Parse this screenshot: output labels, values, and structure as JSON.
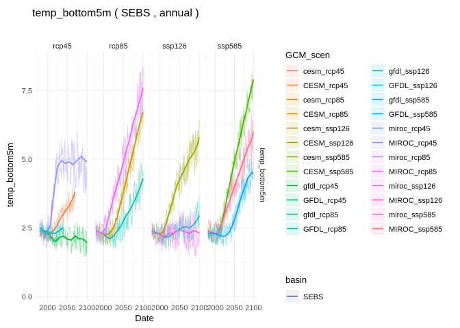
{
  "chart_data": {
    "type": "line",
    "title": "temp_bottom5m ( SEBS , annual )",
    "xlabel": "Date",
    "ylabel": "temp_bottom5m",
    "strip_right": "temp_bottom5m",
    "facets": [
      "rcp45",
      "rcp85",
      "ssp126",
      "ssp585"
    ],
    "xlim": [
      1970,
      2105
    ],
    "ylim": [
      -0.2,
      8.9
    ],
    "x_ticks": [
      2000,
      2050,
      2100
    ],
    "x_tick_labels": [
      "2000",
      "2050",
      "2100"
    ],
    "y_ticks": [
      0.0,
      2.5,
      5.0,
      7.5
    ],
    "y_tick_labels": [
      "0.0",
      "2.5",
      "5.0",
      "7.5"
    ],
    "grid": true,
    "legend_position": "right",
    "legend_gcm": {
      "title": "GCM_scen",
      "entries": [
        {
          "name": "cesm_rcp45",
          "color": "#F8766D"
        },
        {
          "name": "CESM_rcp45",
          "color": "#EE8043"
        },
        {
          "name": "cesm_rcp85",
          "color": "#E18A00"
        },
        {
          "name": "CESM_rcp85",
          "color": "#CD9600"
        },
        {
          "name": "cesm_ssp126",
          "color": "#B69E00"
        },
        {
          "name": "CESM_ssp126",
          "color": "#9CA700"
        },
        {
          "name": "cesm_ssp585",
          "color": "#7CAE00"
        },
        {
          "name": "CESM_ssp585",
          "color": "#49B500"
        },
        {
          "name": "gfdl_rcp45",
          "color": "#00BA38"
        },
        {
          "name": "GFDL_rcp45",
          "color": "#00BE67"
        },
        {
          "name": "gfdl_rcp85",
          "color": "#00C08B"
        },
        {
          "name": "GFDL_rcp85",
          "color": "#00C1AA"
        },
        {
          "name": "gfdl_ssp126",
          "color": "#00BFC4"
        },
        {
          "name": "GFDL_ssp126",
          "color": "#00BBDC"
        },
        {
          "name": "gfdl_ssp585",
          "color": "#00B4F0"
        },
        {
          "name": "GFDL_ssp585",
          "color": "#00A9FF"
        },
        {
          "name": "miroc_rcp45",
          "color": "#619CFF"
        },
        {
          "name": "MIROC_rcp45",
          "color": "#9590FF"
        },
        {
          "name": "miroc_rcp85",
          "color": "#C77CFF"
        },
        {
          "name": "MIROC_rcp85",
          "color": "#E76BF3"
        },
        {
          "name": "miroc_ssp126",
          "color": "#F564E3"
        },
        {
          "name": "MIROC_ssp126",
          "color": "#FF61C3"
        },
        {
          "name": "miroc_ssp585",
          "color": "#FF62BC"
        },
        {
          "name": "MIROC_ssp585",
          "color": "#FF6C91"
        }
      ]
    },
    "legend_basin": {
      "title": "basin",
      "entries": [
        {
          "name": "SEBS",
          "color": "#3366CC"
        }
      ]
    },
    "panels": [
      {
        "facet": "rcp45",
        "series": [
          {
            "color": "#00BA38",
            "x": [
              1980,
              1995,
              2006,
              2010,
              2020,
              2030,
              2040,
              2050,
              2060,
              2070,
              2080,
              2090,
              2100
            ],
            "y": [
              2.4,
              2.3,
              2.25,
              2.15,
              2.0,
              2.15,
              2.2,
              2.1,
              2.05,
              2.2,
              2.1,
              2.1,
              1.95
            ],
            "var": 0.45
          },
          {
            "color": "#EE8043",
            "x": [
              1980,
              1995,
              2006,
              2015,
              2025,
              2035,
              2045,
              2055,
              2065,
              2070
            ],
            "y": [
              2.4,
              2.3,
              2.3,
              2.4,
              2.6,
              2.9,
              3.1,
              3.3,
              3.6,
              3.8
            ],
            "var": 0.4
          },
          {
            "color": "#9590FF",
            "x": [
              1980,
              1995,
              2006,
              2012,
              2018,
              2025,
              2035,
              2045,
              2055,
              2065,
              2075,
              2085,
              2095,
              2100
            ],
            "y": [
              2.4,
              2.35,
              2.5,
              3.3,
              4.0,
              4.7,
              4.95,
              4.85,
              4.9,
              4.8,
              4.95,
              5.1,
              4.95,
              4.9
            ],
            "var": 0.9
          },
          {
            "color": "#00BFC4",
            "x": [
              1980,
              1990,
              2000,
              2010,
              2020,
              2030,
              2040
            ],
            "y": [
              2.5,
              2.4,
              2.35,
              2.3,
              2.3,
              2.4,
              2.5
            ],
            "var": 0.35
          }
        ]
      },
      {
        "facet": "rcp85",
        "series": [
          {
            "color": "#00C1AA",
            "x": [
              1980,
              1995,
              2006,
              2015,
              2025,
              2035,
              2045,
              2055,
              2065,
              2075,
              2085,
              2095,
              2100
            ],
            "y": [
              2.4,
              2.3,
              2.2,
              2.1,
              2.2,
              2.4,
              2.6,
              2.9,
              3.1,
              3.4,
              3.7,
              4.1,
              4.3
            ],
            "var": 0.6
          },
          {
            "color": "#CD9600",
            "x": [
              1980,
              1995,
              2006,
              2015,
              2025,
              2035,
              2045,
              2055,
              2065,
              2075,
              2085,
              2095,
              2100
            ],
            "y": [
              2.4,
              2.3,
              2.25,
              2.3,
              2.5,
              2.9,
              3.5,
              4.1,
              4.7,
              5.3,
              5.9,
              6.5,
              6.7
            ],
            "var": 0.55
          },
          {
            "color": "#E76BF3",
            "x": [
              1980,
              1995,
              2006,
              2015,
              2025,
              2035,
              2045,
              2055,
              2065,
              2075,
              2085,
              2095,
              2100
            ],
            "y": [
              2.4,
              2.3,
              2.5,
              3.0,
              3.6,
              4.1,
              4.6,
              5.2,
              5.7,
              6.3,
              6.8,
              7.3,
              7.6
            ],
            "var": 0.8
          }
        ]
      },
      {
        "facet": "ssp126",
        "series": [
          {
            "color": "#9CA700",
            "x": [
              1980,
              1995,
              2006,
              2015,
              2025,
              2035,
              2045,
              2055,
              2065,
              2075,
              2085,
              2095,
              2100
            ],
            "y": [
              2.4,
              2.3,
              2.3,
              2.6,
              3.1,
              3.6,
              4.1,
              4.4,
              4.7,
              5.0,
              5.2,
              5.5,
              5.8
            ],
            "var": 0.6
          },
          {
            "color": "#00BFC4",
            "x": [
              1980,
              1995,
              2006,
              2015,
              2025,
              2035,
              2045,
              2055,
              2065,
              2075,
              2085,
              2095,
              2100
            ],
            "y": [
              2.3,
              2.3,
              2.2,
              2.15,
              2.2,
              2.3,
              2.4,
              2.5,
              2.55,
              2.5,
              2.6,
              2.8,
              2.95
            ],
            "var": 0.5
          },
          {
            "color": "#F564E3",
            "x": [
              1980,
              1995,
              2006,
              2015,
              2025,
              2035,
              2045,
              2055,
              2065,
              2075,
              2085,
              2095,
              2100
            ],
            "y": [
              2.3,
              2.3,
              2.2,
              2.2,
              2.3,
              2.3,
              2.4,
              2.4,
              2.35,
              2.3,
              2.4,
              2.35,
              2.3
            ],
            "var": 0.7
          }
        ]
      },
      {
        "facet": "ssp585",
        "series": [
          {
            "color": "#49B500",
            "x": [
              1980,
              1995,
              2006,
              2015,
              2025,
              2035,
              2045,
              2055,
              2065,
              2075,
              2085,
              2095,
              2100
            ],
            "y": [
              2.4,
              2.3,
              2.3,
              2.6,
              3.2,
              3.9,
              4.6,
              5.2,
              5.8,
              6.4,
              7.0,
              7.6,
              7.9
            ],
            "var": 0.6
          },
          {
            "color": "#FF6C91",
            "x": [
              1980,
              1995,
              2006,
              2015,
              2025,
              2035,
              2045,
              2055,
              2065,
              2075,
              2085,
              2095,
              2100
            ],
            "y": [
              2.4,
              2.3,
              2.3,
              2.6,
              3.0,
              3.4,
              3.8,
              4.2,
              4.6,
              5.0,
              5.4,
              5.7,
              6.0
            ],
            "var": 0.7
          },
          {
            "color": "#00A9FF",
            "x": [
              1980,
              1995,
              2006,
              2015,
              2025,
              2035,
              2045,
              2055,
              2065,
              2075,
              2085,
              2095,
              2100
            ],
            "y": [
              2.3,
              2.3,
              2.25,
              2.2,
              2.2,
              2.3,
              2.6,
              3.0,
              3.5,
              3.9,
              4.3,
              4.5,
              4.5
            ],
            "var": 0.55
          }
        ]
      }
    ]
  }
}
